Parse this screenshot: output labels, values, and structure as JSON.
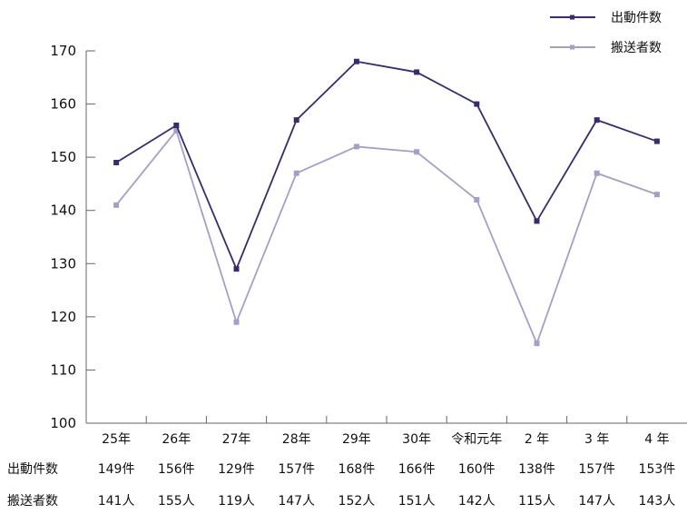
{
  "chart_data": {
    "type": "line",
    "categories": [
      "25年",
      "26年",
      "27年",
      "28年",
      "29年",
      "30年",
      "令和元年",
      "2 年",
      "3 年",
      "4 年"
    ],
    "ylim": [
      100,
      170
    ],
    "yticks": [
      "170",
      "160",
      "150",
      "140",
      "130",
      "120",
      "110",
      "100"
    ],
    "grid": false,
    "legend_position": "top-right",
    "series": [
      {
        "name": "出動件数",
        "color": "#3b2a6e",
        "values": [
          149,
          156,
          129,
          157,
          168,
          166,
          160,
          138,
          157,
          153
        ],
        "labels": [
          "149件",
          "156件",
          "129件",
          "157件",
          "168件",
          "166件",
          "160件",
          "138件",
          "157件",
          "153件"
        ]
      },
      {
        "name": "搬送者数",
        "color": "#a59fc7",
        "values": [
          141,
          155,
          119,
          147,
          152,
          151,
          142,
          115,
          147,
          143
        ],
        "labels": [
          "141人",
          "155人",
          "119人",
          "147人",
          "152人",
          "151人",
          "142人",
          "115人",
          "147人",
          "143人"
        ]
      }
    ]
  }
}
